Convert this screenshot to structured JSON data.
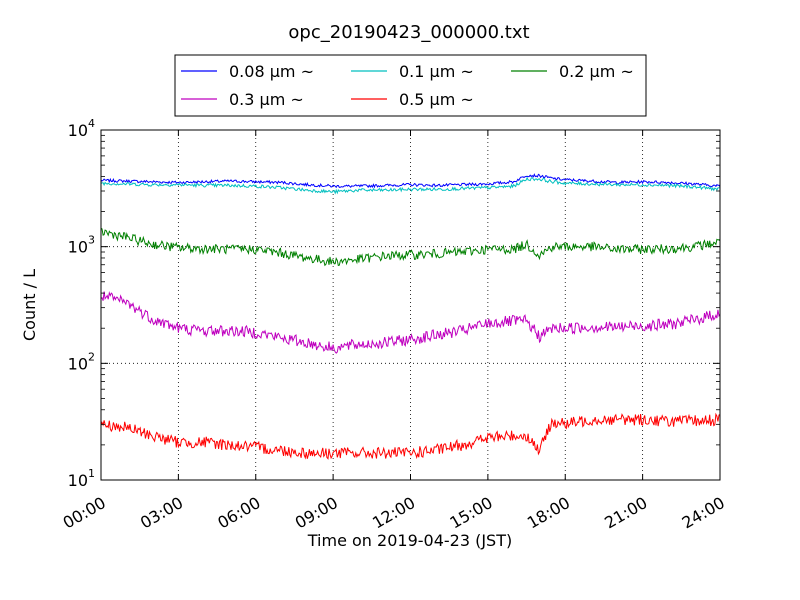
{
  "chart_data": {
    "type": "line",
    "title": "opc_20190423_000000.txt",
    "xlabel": "Time on 2019-04-23 (JST)",
    "ylabel": "Count / L",
    "yscale": "log",
    "ylim": [
      10,
      10000
    ],
    "xlim": [
      "00:00",
      "24:00"
    ],
    "x_ticks": [
      "00:00",
      "03:00",
      "06:00",
      "09:00",
      "12:00",
      "15:00",
      "18:00",
      "21:00",
      "24:00"
    ],
    "y_ticks": [
      {
        "base": "10",
        "exp": "1"
      },
      {
        "base": "10",
        "exp": "2"
      },
      {
        "base": "10",
        "exp": "3"
      },
      {
        "base": "10",
        "exp": "4"
      }
    ],
    "grid": true,
    "legend_position": "top-center",
    "x": [
      "00:00",
      "01:00",
      "02:00",
      "03:00",
      "04:00",
      "05:00",
      "06:00",
      "07:00",
      "08:00",
      "09:00",
      "10:00",
      "11:00",
      "12:00",
      "13:00",
      "14:00",
      "15:00",
      "16:00",
      "16:30",
      "17:00",
      "17:30",
      "18:00",
      "19:00",
      "20:00",
      "21:00",
      "22:00",
      "23:00",
      "24:00"
    ],
    "series": [
      {
        "name": "0.08 μm ~",
        "color": "#0000ff",
        "values": [
          3700,
          3650,
          3600,
          3550,
          3600,
          3650,
          3600,
          3550,
          3400,
          3300,
          3300,
          3350,
          3400,
          3350,
          3400,
          3450,
          3600,
          4100,
          4050,
          3850,
          3750,
          3650,
          3550,
          3600,
          3550,
          3450,
          3300
        ]
      },
      {
        "name": "0.1 μm ~",
        "color": "#00bfbf",
        "values": [
          3500,
          3450,
          3400,
          3400,
          3350,
          3350,
          3300,
          3200,
          3050,
          2950,
          3050,
          3050,
          3100,
          3100,
          3150,
          3200,
          3300,
          3800,
          3800,
          3600,
          3500,
          3450,
          3400,
          3400,
          3350,
          3250,
          3100
        ]
      },
      {
        "name": "0.2 μm ~",
        "color": "#008000",
        "values": [
          1350,
          1200,
          1050,
          980,
          960,
          950,
          950,
          880,
          800,
          740,
          780,
          830,
          850,
          870,
          900,
          950,
          950,
          1050,
          850,
          1000,
          1000,
          1000,
          950,
          950,
          960,
          1000,
          1100
        ]
      },
      {
        "name": "0.3 μm ~",
        "color": "#bf00bf",
        "values": [
          380,
          330,
          240,
          200,
          190,
          190,
          185,
          165,
          150,
          135,
          145,
          150,
          160,
          175,
          190,
          220,
          230,
          230,
          170,
          200,
          200,
          205,
          205,
          210,
          215,
          235,
          270
        ]
      },
      {
        "name": "0.5 μm ~",
        "color": "#ff0000",
        "values": [
          30,
          28,
          24,
          21,
          21,
          20,
          19,
          18,
          17,
          17,
          17,
          17,
          17,
          18,
          20,
          23,
          24,
          24,
          18,
          32,
          30,
          33,
          33,
          33,
          32,
          32,
          33
        ]
      }
    ]
  }
}
